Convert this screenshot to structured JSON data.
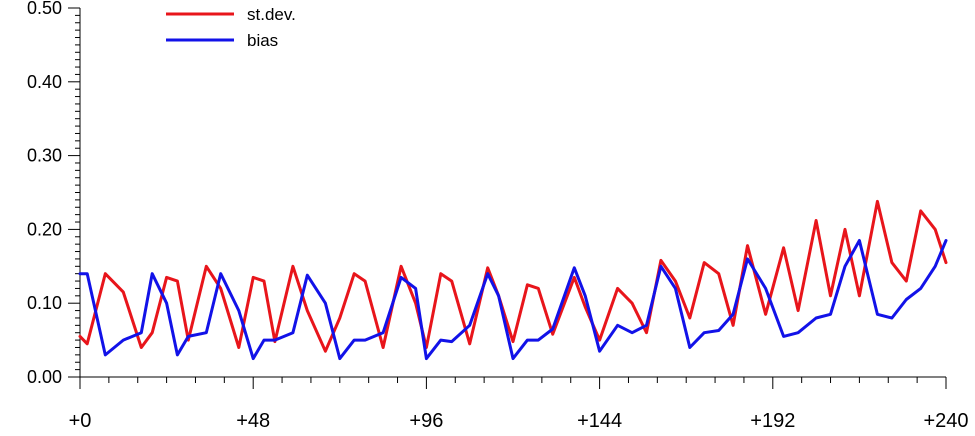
{
  "chart_data": {
    "type": "line",
    "title": "",
    "xlabel": "",
    "ylabel": "",
    "xlim": [
      0,
      240
    ],
    "ylim": [
      0,
      0.5
    ],
    "grid": false,
    "legend_position": "top-left",
    "x_ticks": [
      0,
      48,
      96,
      144,
      192,
      240
    ],
    "x_tick_labels": [
      "+0",
      "+48",
      "+96",
      "+144",
      "+192",
      "+240"
    ],
    "y_ticks": [
      0,
      0.1,
      0.2,
      0.3,
      0.4,
      0.5
    ],
    "y_tick_labels": [
      "0.00",
      "0.10",
      "0.20",
      "0.30",
      "0.40",
      "0.50"
    ],
    "series": [
      {
        "name": "st.dev.",
        "color": "#e8151b",
        "x": [
          0,
          2,
          7,
          12,
          17,
          20,
          24,
          27,
          30,
          35,
          39,
          44,
          48,
          51,
          54,
          59,
          63,
          68,
          72,
          76,
          79,
          84,
          89,
          93,
          96,
          100,
          103,
          108,
          113,
          116,
          120,
          124,
          127,
          131,
          137,
          140,
          144,
          149,
          153,
          157,
          161,
          165,
          169,
          173,
          177,
          181,
          185,
          190,
          195,
          199,
          204,
          208,
          212,
          216,
          221,
          225,
          229,
          233,
          237,
          240
        ],
        "y": [
          0.055,
          0.045,
          0.14,
          0.115,
          0.04,
          0.06,
          0.135,
          0.13,
          0.05,
          0.15,
          0.12,
          0.04,
          0.135,
          0.13,
          0.048,
          0.15,
          0.09,
          0.035,
          0.08,
          0.14,
          0.13,
          0.04,
          0.15,
          0.1,
          0.04,
          0.14,
          0.13,
          0.045,
          0.148,
          0.11,
          0.048,
          0.125,
          0.12,
          0.058,
          0.135,
          0.095,
          0.05,
          0.12,
          0.1,
          0.06,
          0.158,
          0.13,
          0.08,
          0.155,
          0.14,
          0.07,
          0.178,
          0.085,
          0.175,
          0.09,
          0.212,
          0.11,
          0.2,
          0.11,
          0.238,
          0.155,
          0.13,
          0.225,
          0.2,
          0.155
        ]
      },
      {
        "name": "bias",
        "color": "#1212e8",
        "x": [
          0,
          2,
          7,
          12,
          17,
          20,
          24,
          27,
          30,
          35,
          39,
          44,
          48,
          51,
          54,
          59,
          63,
          68,
          72,
          76,
          79,
          84,
          89,
          93,
          96,
          100,
          103,
          108,
          113,
          116,
          120,
          124,
          127,
          131,
          137,
          140,
          144,
          149,
          153,
          157,
          161,
          165,
          169,
          173,
          177,
          181,
          185,
          190,
          195,
          199,
          204,
          208,
          212,
          216,
          221,
          225,
          229,
          233,
          237,
          240
        ],
        "y": [
          0.14,
          0.14,
          0.03,
          0.05,
          0.06,
          0.14,
          0.1,
          0.03,
          0.055,
          0.06,
          0.14,
          0.09,
          0.025,
          0.05,
          0.05,
          0.06,
          0.138,
          0.1,
          0.025,
          0.05,
          0.05,
          0.06,
          0.135,
          0.12,
          0.025,
          0.05,
          0.048,
          0.07,
          0.14,
          0.11,
          0.025,
          0.05,
          0.05,
          0.065,
          0.148,
          0.11,
          0.035,
          0.07,
          0.06,
          0.07,
          0.15,
          0.12,
          0.04,
          0.06,
          0.063,
          0.085,
          0.16,
          0.12,
          0.055,
          0.06,
          0.08,
          0.085,
          0.15,
          0.185,
          0.085,
          0.08,
          0.105,
          0.12,
          0.15,
          0.185
        ]
      }
    ]
  }
}
